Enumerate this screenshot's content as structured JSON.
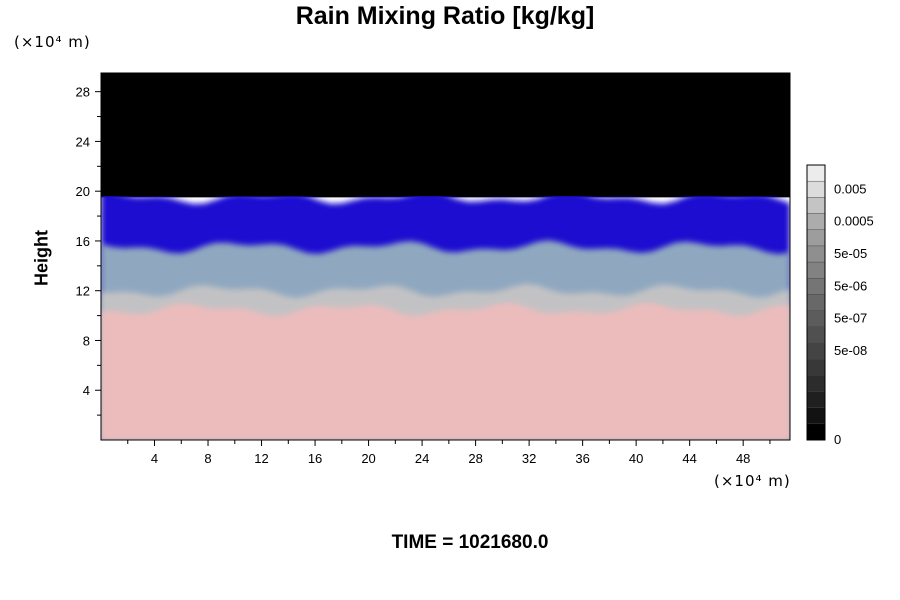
{
  "chart_data": {
    "type": "heatmap",
    "title": "Rain Mixing Ratio [kg/kg]",
    "ylabel": "Height",
    "xlabel": "",
    "x_unit_label": "(×10⁴ m)",
    "y_unit_label": "(×10⁴ m)",
    "footer": "TIME = 1021680.0",
    "xlim": [
      0,
      51.5
    ],
    "ylim": [
      0,
      29.5
    ],
    "x_ticks": [
      4,
      8,
      12,
      16,
      20,
      24,
      28,
      32,
      36,
      40,
      44,
      48
    ],
    "y_ticks": [
      4,
      8,
      12,
      16,
      20,
      24,
      28
    ],
    "colorbar": {
      "labels": [
        "0.005",
        "0.0005",
        "5e-05",
        "5e-06",
        "5e-07",
        "5e-08",
        "0"
      ],
      "label_levels": [
        15,
        13,
        11,
        9,
        7,
        5,
        0
      ],
      "levels": 16,
      "colors": [
        "#000000",
        "#121212",
        "#1f1f1f",
        "#2c2c2c",
        "#383838",
        "#444444",
        "#505050",
        "#5c5c5c",
        "#686868",
        "#757575",
        "#828282",
        "#8f8f8f",
        "#9d9d9d",
        "#acacac",
        "#c4c4c4",
        "#dcdcdc",
        "#ececec"
      ]
    },
    "field_bands": [
      {
        "name": "black region",
        "y_from": 19.5,
        "y_to": 29.5,
        "color": "#000000"
      },
      {
        "name": "blue region",
        "y_from": 15.5,
        "y_to": 19.5,
        "color": "#1a0fd0"
      },
      {
        "name": "cyan-grey region",
        "y_from": 12.0,
        "y_to": 15.5,
        "color": "#8fa8c0"
      },
      {
        "name": "grey region",
        "y_from": 10.5,
        "y_to": 12.0,
        "color": "#c2c2c4"
      },
      {
        "name": "pink region",
        "y_from": 0,
        "y_to": 10.5,
        "color": "#ecbcbc"
      }
    ]
  }
}
